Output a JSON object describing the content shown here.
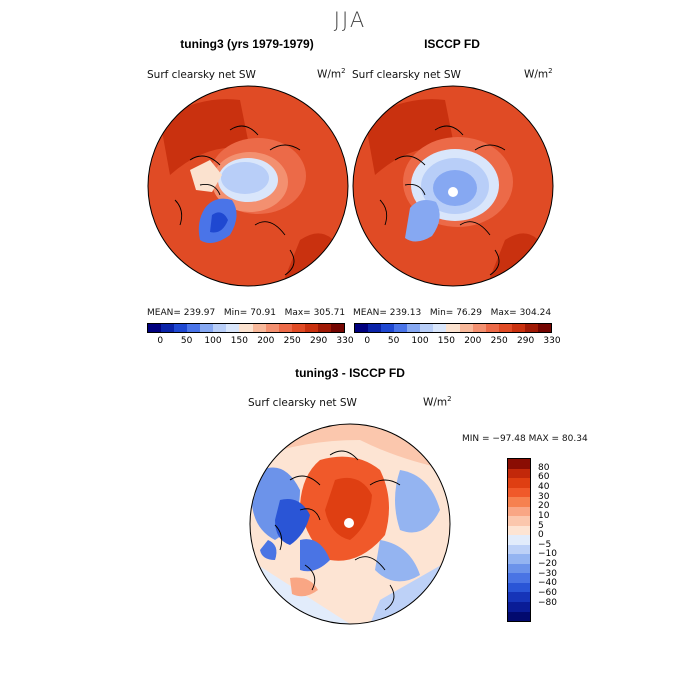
{
  "season": "JJA",
  "panels": [
    {
      "title": "tuning3 (yrs 1979-1979)",
      "variable": "Surf clearsky net SW",
      "units_base": "W/m",
      "units_exp": "2",
      "mean": "MEAN= 239.97",
      "min": "Min=   70.91",
      "max": "Max= 305.71"
    },
    {
      "title": "ISCCP FD",
      "variable": "Surf clearsky net SW",
      "units_base": "W/m",
      "units_exp": "2",
      "mean": "MEAN= 239.13",
      "min": "Min=   76.29",
      "max": "Max= 304.24"
    }
  ],
  "abs_colorbar": {
    "colors": [
      "#00007e",
      "#0a23a8",
      "#1f48d1",
      "#4a74e8",
      "#86a8f2",
      "#b8cef8",
      "#d9e6fb",
      "#fbe2cf",
      "#f8b89a",
      "#f39070",
      "#ec6a48",
      "#e04b25",
      "#c9310f",
      "#a01a06",
      "#740602"
    ],
    "ticks": [
      "0",
      "50",
      "100",
      "150",
      "200",
      "250",
      "290",
      "330"
    ]
  },
  "diff_panel": {
    "title": "tuning3 - ISCCP FD",
    "variable": "Surf clearsky net SW",
    "units_base": "W/m",
    "units_exp": "2",
    "minmax": "MIN = −97.48  MAX =   80.34"
  },
  "diff_colorbar": {
    "colors": [
      "#8a0d03",
      "#c2280a",
      "#df3f12",
      "#f0592a",
      "#f6814f",
      "#f9a684",
      "#fbc7ad",
      "#fde4d3",
      "#e2ecfb",
      "#bdd1f7",
      "#94b4f1",
      "#6c93ea",
      "#4a74e4",
      "#2a55d6",
      "#1634b8",
      "#0a1c96",
      "#020a6e"
    ],
    "ticks": [
      "80",
      "60",
      "40",
      "30",
      "20",
      "10",
      "5",
      "0",
      "−5",
      "−10",
      "−20",
      "−30",
      "−40",
      "−60",
      "−80"
    ]
  }
}
